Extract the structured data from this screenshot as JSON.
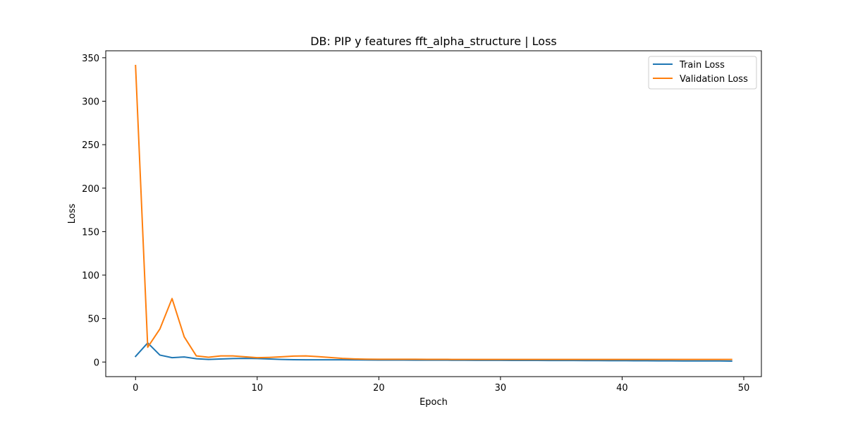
{
  "chart_data": {
    "type": "line",
    "title": "DB: PIP y features fft_alpha_structure | Loss",
    "xlabel": "Epoch",
    "ylabel": "Loss",
    "xlim": [
      -2.45,
      51.45
    ],
    "ylim": [
      -16.8,
      358.0
    ],
    "xticks": [
      0,
      10,
      20,
      30,
      40,
      50
    ],
    "yticks": [
      0,
      50,
      100,
      150,
      200,
      250,
      300,
      350
    ],
    "grid": false,
    "legend_position": "upper right",
    "x": [
      0,
      1,
      2,
      3,
      4,
      5,
      6,
      7,
      8,
      9,
      10,
      11,
      12,
      13,
      14,
      15,
      16,
      17,
      18,
      19,
      20,
      21,
      22,
      23,
      24,
      25,
      26,
      27,
      28,
      29,
      30,
      31,
      32,
      33,
      34,
      35,
      36,
      37,
      38,
      39,
      40,
      41,
      42,
      43,
      44,
      45,
      46,
      47,
      48,
      49
    ],
    "series": [
      {
        "name": "Train Loss",
        "color": "#1f77b4",
        "values": [
          6.5,
          22.0,
          8.0,
          5.0,
          5.8,
          3.8,
          3.0,
          3.5,
          4.0,
          4.2,
          4.0,
          3.5,
          3.0,
          2.7,
          2.6,
          2.6,
          2.6,
          2.6,
          2.5,
          2.4,
          2.3,
          2.3,
          2.3,
          2.2,
          2.2,
          2.2,
          2.1,
          2.1,
          2.0,
          2.0,
          2.0,
          1.9,
          1.9,
          1.9,
          1.8,
          1.8,
          1.8,
          1.7,
          1.7,
          1.6,
          1.6,
          1.5,
          1.5,
          1.4,
          1.4,
          1.3,
          1.3,
          1.2,
          1.2,
          1.1
        ]
      },
      {
        "name": "Validation Loss",
        "color": "#ff7f0e",
        "values": [
          341.0,
          17.0,
          38.0,
          73.0,
          29.0,
          7.0,
          5.5,
          7.0,
          7.0,
          6.0,
          5.0,
          5.3,
          6.0,
          6.8,
          7.0,
          6.2,
          5.2,
          4.2,
          3.6,
          3.3,
          3.2,
          3.2,
          3.2,
          3.2,
          3.1,
          3.1,
          3.0,
          3.0,
          3.0,
          3.0,
          3.0,
          3.0,
          3.0,
          3.0,
          3.0,
          3.0,
          3.0,
          3.0,
          3.0,
          3.0,
          3.0,
          3.0,
          3.0,
          3.0,
          3.0,
          3.0,
          3.0,
          3.0,
          3.0,
          3.0
        ]
      }
    ]
  }
}
